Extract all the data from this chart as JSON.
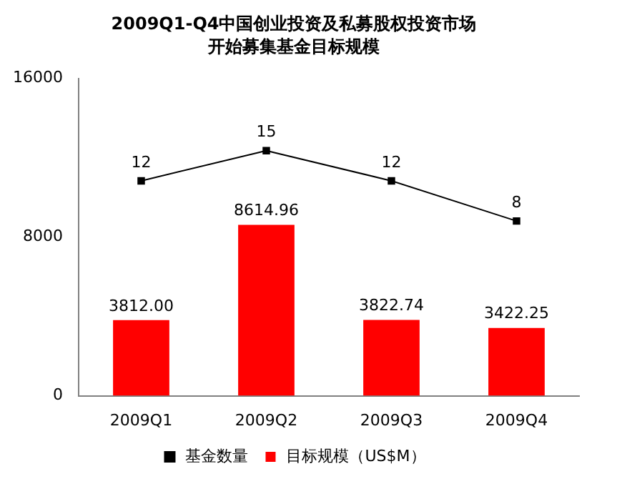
{
  "chart_data": {
    "type": "bar",
    "title": "2009Q1-Q4中国创业投资及私募股权投资市场",
    "subtitle": "开始募集基金目标规模",
    "categories": [
      "2009Q1",
      "2009Q2",
      "2009Q3",
      "2009Q4"
    ],
    "series": [
      {
        "name": "目标规模（US$M）",
        "color": "#ff0000",
        "values": [
          3812.0,
          8614.96,
          3822.74,
          3422.25
        ],
        "value_labels": [
          "3812.00",
          "8614.96",
          "3822.74",
          "3422.25"
        ]
      },
      {
        "name": "基金数量",
        "type": "line",
        "axis": "y2",
        "color": "#000000",
        "values": [
          12,
          15,
          12,
          8
        ],
        "marker": "square"
      }
    ],
    "ylim": [
      0,
      16000
    ],
    "yticks": [
      0,
      8000,
      16000
    ],
    "y2lim": [
      -9.4,
      22.2
    ],
    "grid": false,
    "legend": "bottom",
    "data_labels": true
  }
}
